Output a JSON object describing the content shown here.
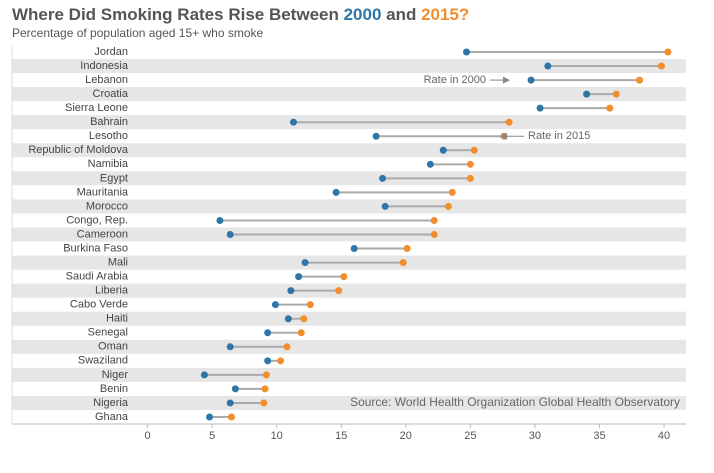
{
  "chart_data": {
    "type": "dumbbell",
    "title_parts": [
      "Where Did Smoking Rates Rise Between ",
      "2000",
      " and ",
      "2015?"
    ],
    "subtitle": "Percentage of population aged 15+ who smoke",
    "source": "Source: World Health Organization Global Health Observatory",
    "categories": [
      "Jordan",
      "Indonesia",
      "Lebanon",
      "Croatia",
      "Sierra Leone",
      "Bahrain",
      "Lesotho",
      "Republic of Moldova",
      "Namibia",
      "Egypt",
      "Mauritania",
      "Morocco",
      "Congo, Rep.",
      "Cameroon",
      "Burkina Faso",
      "Mali",
      "Saudi Arabia",
      "Liberia",
      "Cabo Verde",
      "Haiti",
      "Senegal",
      "Oman",
      "Swaziland",
      "Niger",
      "Benin",
      "Nigeria",
      "Ghana"
    ],
    "series": [
      {
        "name": "Rate in 2000",
        "color": "#2e75a8",
        "values": [
          24.7,
          31.0,
          29.7,
          34.0,
          30.4,
          11.3,
          17.7,
          22.9,
          21.9,
          18.2,
          14.6,
          18.4,
          5.6,
          6.4,
          16.0,
          12.2,
          11.7,
          11.1,
          9.9,
          10.9,
          9.3,
          6.4,
          9.3,
          4.4,
          6.8,
          6.4,
          4.8
        ]
      },
      {
        "name": "Rate in 2015",
        "color": "#f28e2b",
        "values": [
          40.3,
          39.8,
          38.1,
          36.3,
          35.8,
          28.0,
          27.6,
          25.3,
          25.0,
          25.0,
          23.6,
          23.3,
          22.2,
          22.2,
          20.1,
          19.8,
          15.2,
          14.8,
          12.6,
          12.1,
          11.9,
          10.8,
          10.3,
          9.2,
          9.1,
          9.0,
          6.5
        ]
      }
    ],
    "xlim": [
      -10.5,
      41.7
    ],
    "xticks": [
      0,
      5,
      10,
      15,
      20,
      25,
      30,
      35,
      40
    ],
    "grid": false
  }
}
